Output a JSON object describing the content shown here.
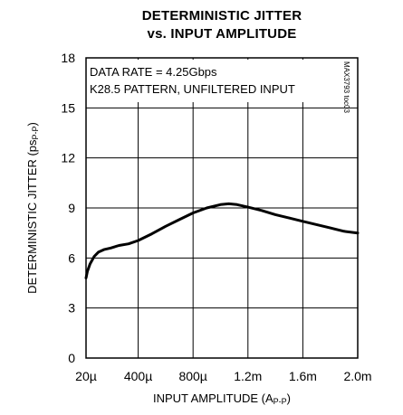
{
  "title_lines": [
    "DETERMINISTIC JITTER",
    "vs. INPUT AMPLITUDE"
  ],
  "annotations": [
    "DATA RATE = 4.25Gbps",
    "K28.5 PATTERN, UNFILTERED INPUT"
  ],
  "vertical_id": "MAX3793 toc03",
  "chart_data": {
    "type": "line",
    "title": "DETERMINISTIC JITTER vs. INPUT AMPLITUDE",
    "xlabel": "INPUT AMPLITUDE (A",
    "xlabel_sub": "P-P",
    "xlabel_end": ")",
    "ylabel": "DETERMINISTIC JITTER (ps",
    "ylabel_sub": "P-P",
    "ylabel_end": ")",
    "x_unit": "A",
    "xlim": [
      2e-05,
      0.002
    ],
    "ylim": [
      0,
      18
    ],
    "grid": true,
    "x_ticks": [
      2e-05,
      0.0004,
      0.0008,
      0.0012,
      0.0016,
      0.002
    ],
    "x_tick_labels": [
      "20µ",
      "400µ",
      "800µ",
      "1.2m",
      "1.6m",
      "2.0m"
    ],
    "y_ticks": [
      0,
      3,
      6,
      9,
      12,
      15,
      18
    ],
    "y_tick_labels": [
      "0",
      "3",
      "6",
      "9",
      "12",
      "15",
      "18"
    ],
    "series": [
      {
        "color": "#000000",
        "x": [
          2e-05,
          3e-05,
          5e-05,
          8e-05,
          0.00011,
          0.00015,
          0.0002,
          0.00026,
          0.00033,
          0.0004,
          0.0005,
          0.0006,
          0.0007,
          0.0008,
          0.0009,
          0.001,
          0.00106,
          0.00112,
          0.0012,
          0.0013,
          0.0014,
          0.0015,
          0.0016,
          0.0017,
          0.0018,
          0.0019,
          0.002
        ],
        "y": [
          4.8,
          5.2,
          5.65,
          6.1,
          6.35,
          6.5,
          6.6,
          6.75,
          6.85,
          7.05,
          7.45,
          7.9,
          8.3,
          8.7,
          9.0,
          9.2,
          9.25,
          9.2,
          9.05,
          8.85,
          8.6,
          8.4,
          8.2,
          8.0,
          7.8,
          7.6,
          7.5
        ]
      }
    ]
  }
}
